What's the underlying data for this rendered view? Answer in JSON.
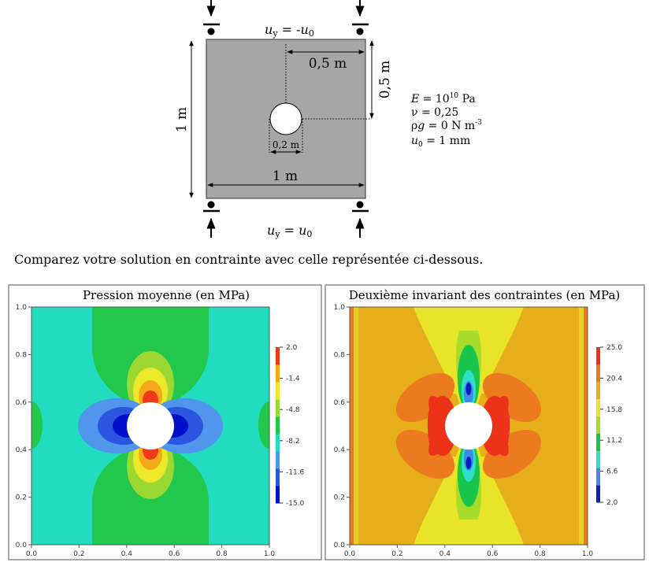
{
  "problem": {
    "load_top_var": "u",
    "load_top_sub": "y",
    "load_top_rhs": " = -",
    "load_top_rhs_var": "u",
    "load_top_rhs_sub": "0",
    "load_bottom_var": "u",
    "load_bottom_sub": "y",
    "load_bottom_rhs": " = ",
    "load_bottom_rhs_var": "u",
    "load_bottom_rhs_sub": "0",
    "dim_half_width": "0,5 m",
    "dim_half_height": "0,5 m",
    "dim_height": "1 m",
    "dim_width": "1 m",
    "dim_hole": "0,2 m",
    "param_E_var": "E",
    "param_E_eq": " = 10",
    "param_E_exp": "10",
    "param_E_unit": " Pa",
    "param_nu": "ν = 0,25",
    "param_rhog_pre": "ρ",
    "param_rhog_var": "g",
    "param_rhog_eq": " = 0 N m",
    "param_rhog_exp": "-3",
    "param_u0_var": "u",
    "param_u0_sub": "0",
    "param_u0_eq": "  =  1 mm"
  },
  "instruction": "Comparez votre solution en contrainte avec celle représentée ci-dessous.",
  "colors": {
    "plate": "#a6a6a6",
    "mean_pressure_palette": [
      "#0010c8",
      "#2a55e0",
      "#4f96ec",
      "#22dcc0",
      "#22c84c",
      "#9cd832",
      "#eee82a",
      "#f4aa18",
      "#ee3a1a"
    ],
    "invariant_palette": [
      "#0a1ec0",
      "#3f8aea",
      "#2ee0c8",
      "#18c44a",
      "#a6dc2a",
      "#e8e42a",
      "#e6ae1a",
      "#ec7a1e",
      "#ec3218"
    ]
  },
  "chart_data": [
    {
      "type": "heatmap",
      "title": "Pression moyenne (en MPa)",
      "x_ticks": [
        "0.0",
        "0.2",
        "0.4",
        "0.6",
        "0.8",
        "1.0"
      ],
      "y_ticks": [
        "0.0",
        "0.2",
        "0.4",
        "0.6",
        "0.8",
        "1.0"
      ],
      "xlim": [
        0,
        1
      ],
      "ylim": [
        0,
        1
      ],
      "hole_center": [
        0.5,
        0.5
      ],
      "hole_radius": 0.1,
      "colorbar_ticks": [
        "2.0",
        "-1.4",
        "-4.8",
        "-8.2",
        "-11.6",
        "-15.0"
      ],
      "colorbar_range": [
        -15.0,
        2.0
      ],
      "background_level": "cyan"
    },
    {
      "type": "heatmap",
      "title": "Deuxième invariant des contraintes (en MPa)",
      "x_ticks": [
        "0.0",
        "0.2",
        "0.4",
        "0.6",
        "0.8",
        "1.0"
      ],
      "y_ticks": [
        "0.0",
        "0.2",
        "0.4",
        "0.6",
        "0.8",
        "1.0"
      ],
      "xlim": [
        0,
        1
      ],
      "ylim": [
        0,
        1
      ],
      "hole_center": [
        0.5,
        0.5
      ],
      "hole_radius": 0.1,
      "colorbar_ticks": [
        "25.0",
        "20.4",
        "15.8",
        "11.2",
        "6.6",
        "2.0"
      ],
      "colorbar_range": [
        2.0,
        25.0
      ],
      "background_level": "orange"
    }
  ]
}
